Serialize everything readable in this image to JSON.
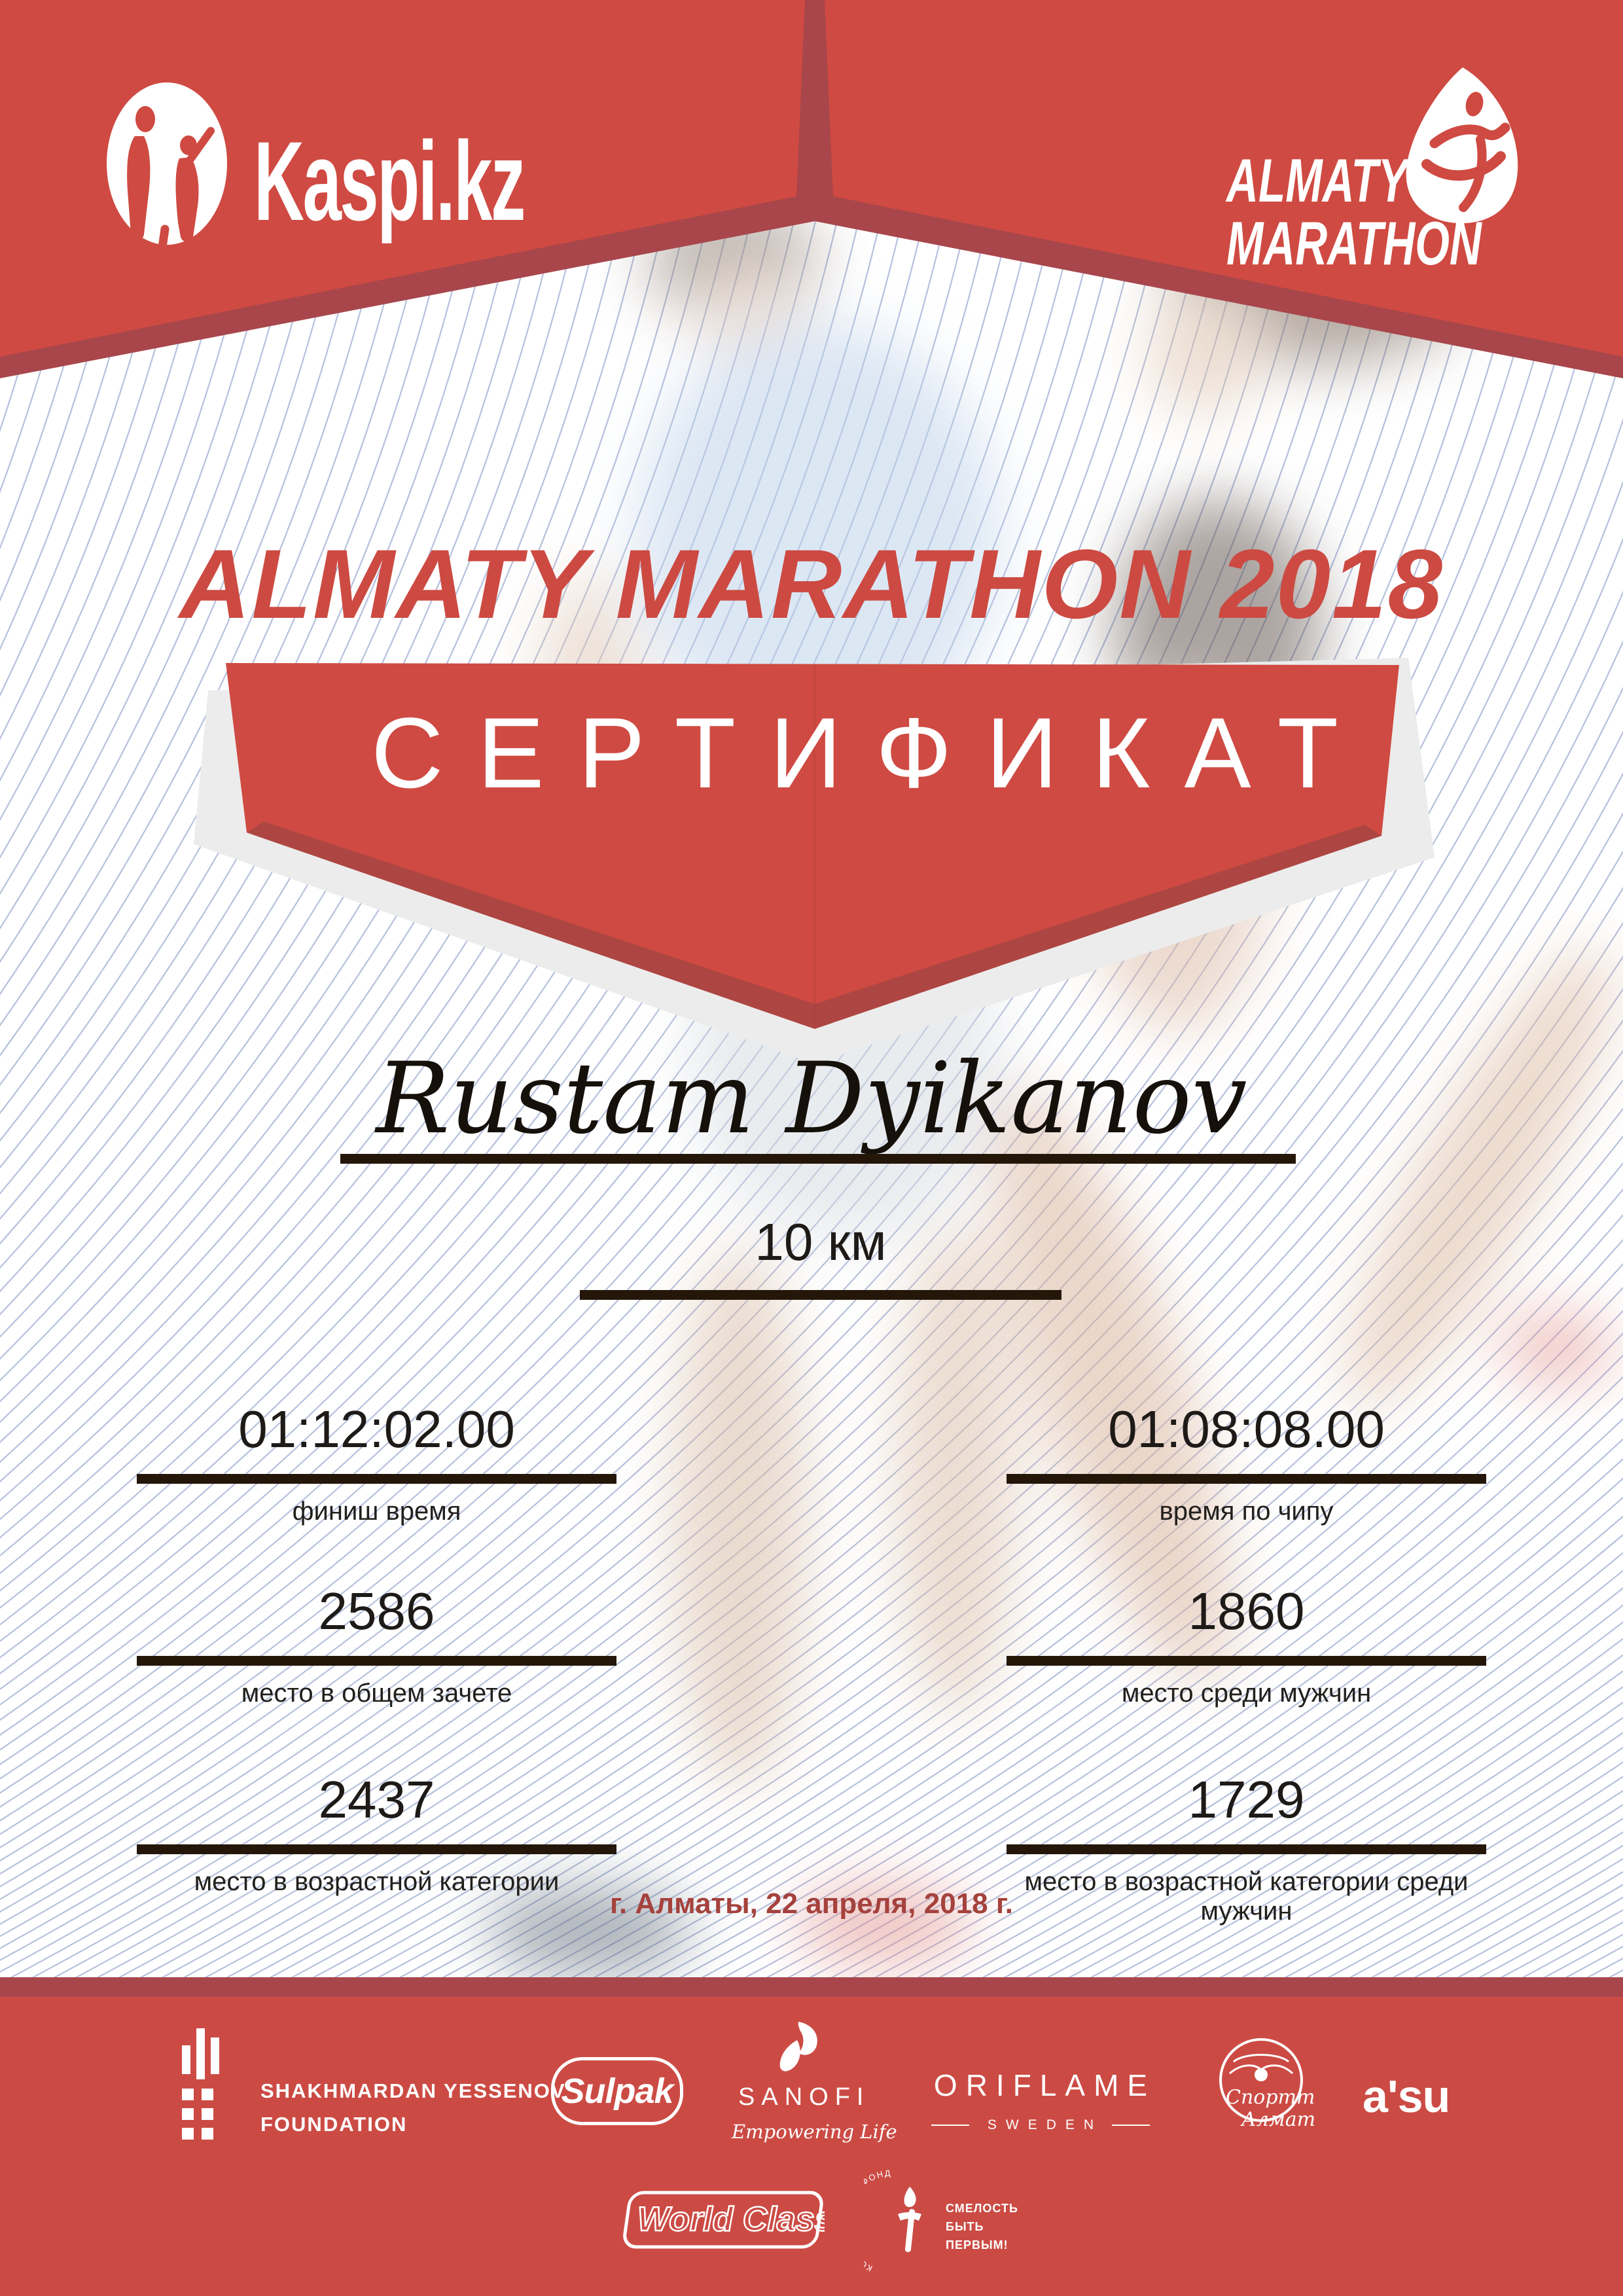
{
  "header": {
    "kaspi_logo_text": "Kaspi.kz",
    "almaty_logo_line1": "ALMATY",
    "almaty_logo_line2": "MARATHON"
  },
  "title": "ALMATY MARATHON 2018",
  "certificate_label": "СЕРТИФИКАТ",
  "runner": {
    "name": "Rustam Dyikanov",
    "distance": "10 км"
  },
  "stats": [
    {
      "value": "01:12:02.00",
      "label": "финиш время"
    },
    {
      "value": "01:08:08.00",
      "label": "время по чипу"
    },
    {
      "value": "2586",
      "label": "место в общем зачете"
    },
    {
      "value": "1860",
      "label": "место среди мужчин"
    },
    {
      "value": "2437",
      "label": "место в возрастной категории"
    },
    {
      "value": "1729",
      "label": "место в возрастной категории среди мужчин"
    }
  ],
  "footer_note": "г. Алматы, 22 апреля, 2018 г.",
  "sponsors": {
    "yessenov_line1": "SHAKHMARDAN YESSENOV",
    "yessenov_line2": "FOUNDATION",
    "sulpak": "Sulpak",
    "sanofi": "SANOFI",
    "sanofi_tagline": "Empowering Life",
    "oriflame": "ORIFLAME",
    "oriflame_sub": "SWEDEN",
    "sportyk_line1": "Спорттык",
    "sportyk_line2": "Алматы",
    "asu": "a'su",
    "world_class": "World Class",
    "fund_arc": "КОРПОРАТИВНЫЙ ФОНД",
    "fund_line1": "СМЕЛОСТЬ",
    "fund_line2": "БЫТЬ",
    "fund_line3": "ПЕРВЫМ!"
  },
  "colors": {
    "accent_red": "#cf4a42",
    "bevel_red": "#ad4642",
    "footer_red": "#cb4b44",
    "footer_strip": "#a8464b",
    "line_brown": "#241709",
    "date_red": "#a5413c",
    "guilloche": "#b6c1dd"
  }
}
